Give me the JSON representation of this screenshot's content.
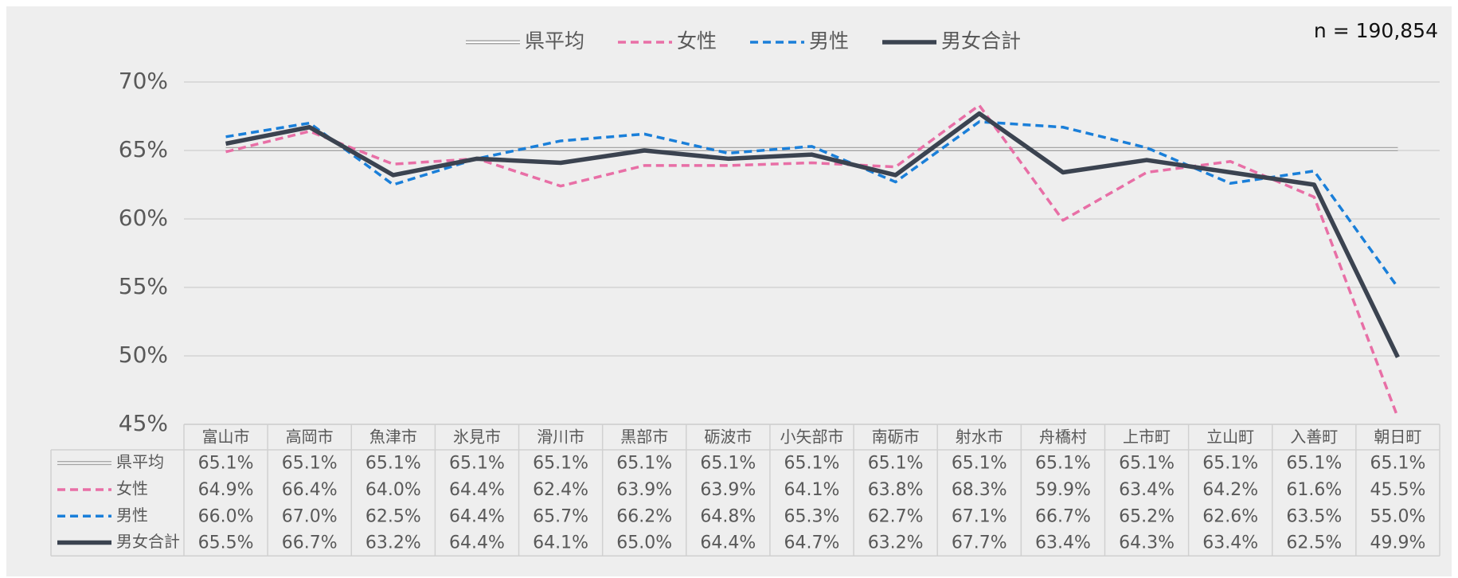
{
  "chart_data": {
    "type": "line",
    "annotation": "n = 190,854",
    "categories": [
      "富山市",
      "高岡市",
      "魚津市",
      "氷見市",
      "滑川市",
      "黒部市",
      "砺波市",
      "小矢部市",
      "南砺市",
      "射水市",
      "舟橋村",
      "上市町",
      "立山町",
      "入善町",
      "朝日町"
    ],
    "ylim": [
      45,
      70
    ],
    "yticks": [
      {
        "value": 45,
        "label": "45%"
      },
      {
        "value": 50,
        "label": "50%"
      },
      {
        "value": 55,
        "label": "55%"
      },
      {
        "value": 60,
        "label": "60%"
      },
      {
        "value": 65,
        "label": "65%"
      },
      {
        "value": 70,
        "label": "70%"
      }
    ],
    "grid": true,
    "legend": "top",
    "data_table": true,
    "series": [
      {
        "name": "県平均",
        "color": "#a6a6a6",
        "line_style": "double",
        "values": [
          65.1,
          65.1,
          65.1,
          65.1,
          65.1,
          65.1,
          65.1,
          65.1,
          65.1,
          65.1,
          65.1,
          65.1,
          65.1,
          65.1,
          65.1
        ],
        "value_labels": [
          "65.1%",
          "65.1%",
          "65.1%",
          "65.1%",
          "65.1%",
          "65.1%",
          "65.1%",
          "65.1%",
          "65.1%",
          "65.1%",
          "65.1%",
          "65.1%",
          "65.1%",
          "65.1%",
          "65.1%"
        ]
      },
      {
        "name": "女性",
        "color": "#e86fa6",
        "line_style": "dashed",
        "values": [
          64.9,
          66.4,
          64.0,
          64.4,
          62.4,
          63.9,
          63.9,
          64.1,
          63.8,
          68.3,
          59.9,
          63.4,
          64.2,
          61.6,
          45.5
        ],
        "value_labels": [
          "64.9%",
          "66.4%",
          "64.0%",
          "64.4%",
          "62.4%",
          "63.9%",
          "63.9%",
          "64.1%",
          "63.8%",
          "68.3%",
          "59.9%",
          "63.4%",
          "64.2%",
          "61.6%",
          "45.5%"
        ]
      },
      {
        "name": "男性",
        "color": "#1a7fd9",
        "line_style": "dashed",
        "values": [
          66.0,
          67.0,
          62.5,
          64.4,
          65.7,
          66.2,
          64.8,
          65.3,
          62.7,
          67.1,
          66.7,
          65.2,
          62.6,
          63.5,
          55.0
        ],
        "value_labels": [
          "66.0%",
          "67.0%",
          "62.5%",
          "64.4%",
          "65.7%",
          "66.2%",
          "64.8%",
          "65.3%",
          "62.7%",
          "67.1%",
          "66.7%",
          "65.2%",
          "62.6%",
          "63.5%",
          "55.0%"
        ]
      },
      {
        "name": "男女合計",
        "color": "#3b4350",
        "line_style": "solid",
        "values": [
          65.5,
          66.7,
          63.2,
          64.4,
          64.1,
          65.0,
          64.4,
          64.7,
          63.2,
          67.7,
          63.4,
          64.3,
          63.4,
          62.5,
          49.9
        ],
        "value_labels": [
          "65.5%",
          "66.7%",
          "63.2%",
          "64.4%",
          "64.1%",
          "65.0%",
          "64.4%",
          "64.7%",
          "63.2%",
          "67.7%",
          "63.4%",
          "64.3%",
          "63.4%",
          "62.5%",
          "49.9%"
        ]
      }
    ]
  }
}
